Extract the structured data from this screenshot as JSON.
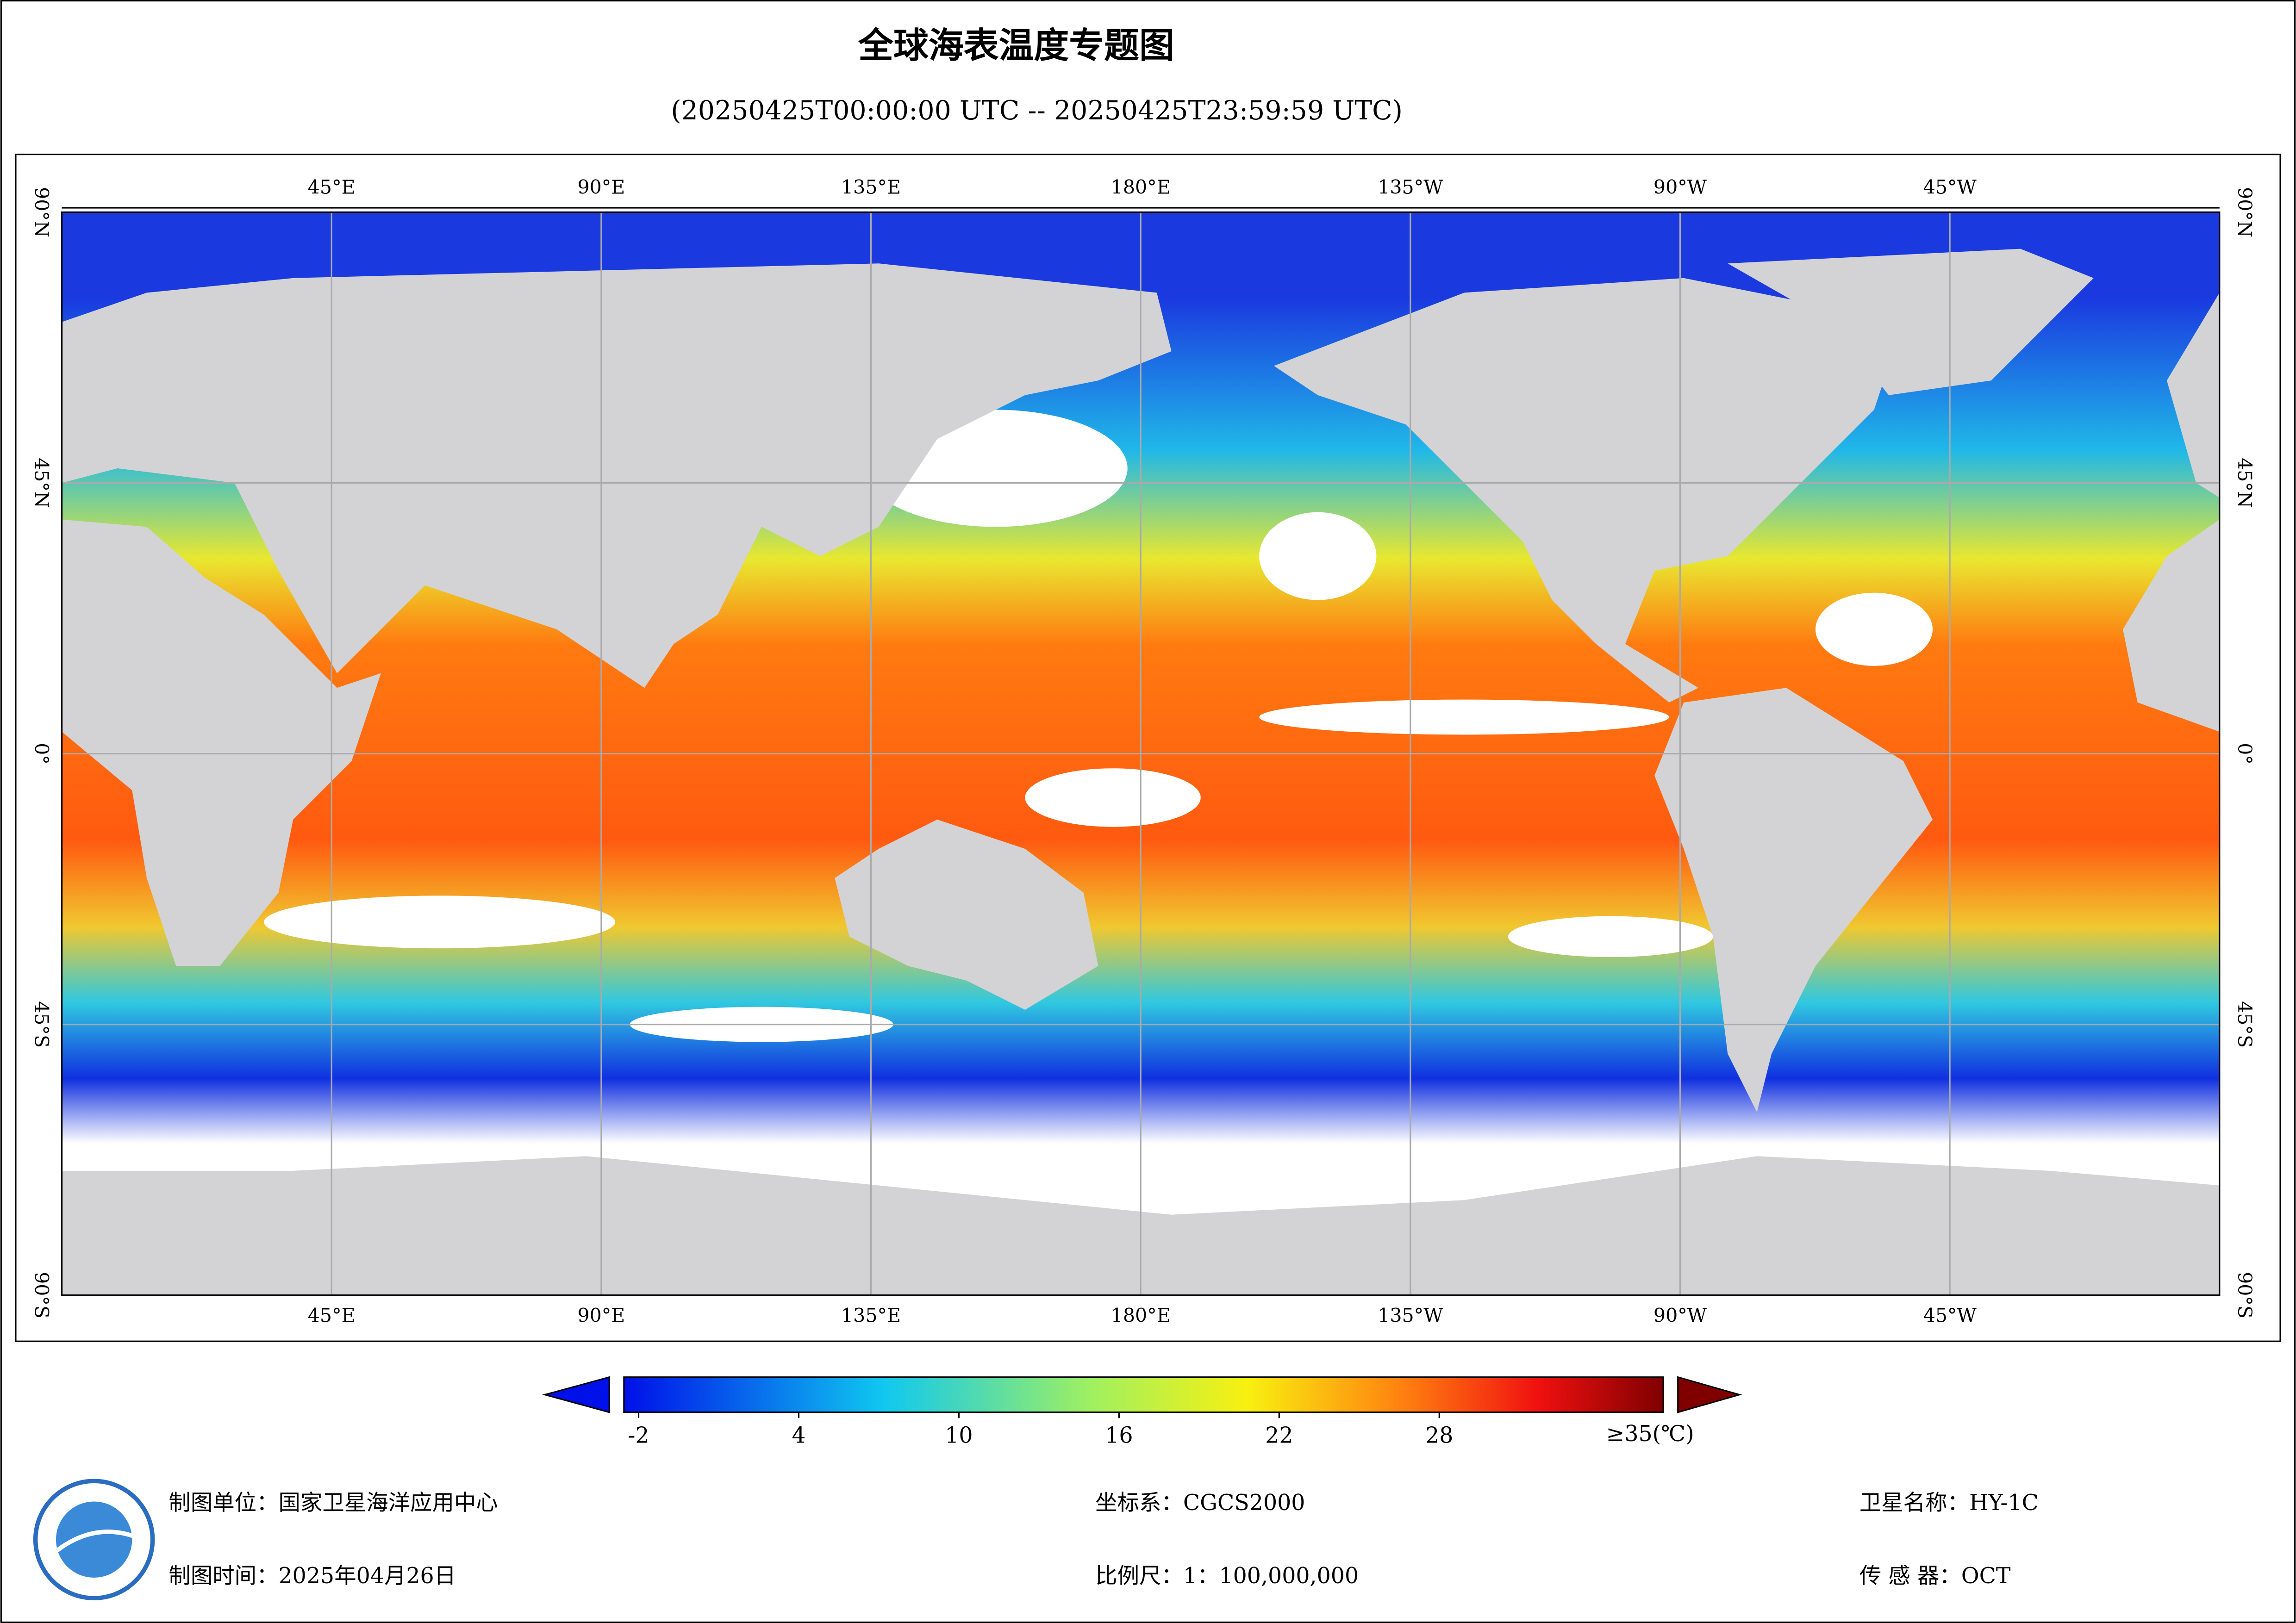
{
  "header": {
    "title": "全球海表温度专题图",
    "subtitle": "(20250425T00:00:00 UTC -- 20250425T23:59:59 UTC)"
  },
  "map": {
    "lon_labels": [
      "45°E",
      "90°E",
      "135°E",
      "180°E",
      "135°W",
      "90°W",
      "45°W"
    ],
    "lat_labels": [
      "90°N",
      "45°N",
      "0°",
      "45°S",
      "90°S"
    ]
  },
  "colorbar": {
    "ticks": [
      -2,
      4,
      10,
      16,
      22,
      28
    ],
    "max_label": "≥35(℃)"
  },
  "footer": {
    "unit": "制图单位：国家卫星海洋应用中心",
    "date": "制图时间：2025年04月26日",
    "crs": "坐标系：CGCS2000",
    "scale": "比例尺：1：100,000,000",
    "satellite": "卫星名称：HY-1C",
    "sensor": "传 感 器：OCT"
  }
}
